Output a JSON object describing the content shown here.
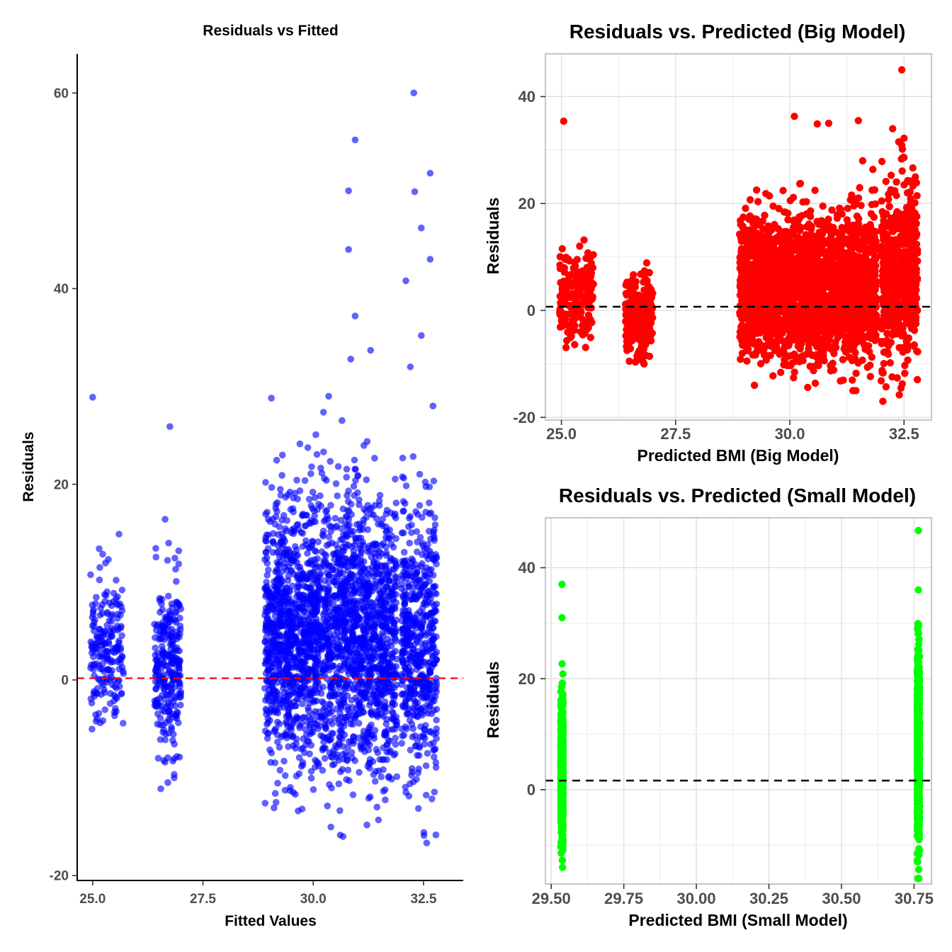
{
  "colors": {
    "left_points": "#0000FF",
    "big_points": "#FF0000",
    "small_points": "#00FF00",
    "left_zero_line": "#FF0000",
    "right_zero_line": "#000000",
    "grid": "#DEDEDE"
  },
  "chart_data": [
    {
      "id": "left",
      "type": "scatter",
      "title": "Residuals vs Fitted",
      "xlabel": "Fitted Values",
      "ylabel": "Residuals",
      "xlim": [
        24.65,
        33.4
      ],
      "ylim": [
        -20.5,
        64
      ],
      "xticks": [
        25.0,
        27.5,
        30.0,
        32.5
      ],
      "xtick_labels": [
        "25.0",
        "27.5",
        "30.0",
        "32.5"
      ],
      "yticks": [
        -20,
        0,
        20,
        40,
        60
      ],
      "ytick_labels": [
        "-20",
        "0",
        "20",
        "40",
        "60"
      ],
      "grid": false,
      "reference_line": {
        "y": 0,
        "style": "dashed"
      },
      "clusters": [
        {
          "x": [
            24.95,
            25.7
          ],
          "y_min": -8,
          "y_max": 18,
          "n": 200
        },
        {
          "x": [
            26.4,
            27.0
          ],
          "y_min": -12,
          "y_max": 18,
          "n": 280
        },
        {
          "x": [
            28.9,
            30.0
          ],
          "y_min": -15,
          "y_max": 28,
          "n": 900
        },
        {
          "x": [
            30.0,
            31.9
          ],
          "y_min": -16,
          "y_max": 29,
          "n": 1500
        },
        {
          "x": [
            32.0,
            32.8
          ],
          "y_min": -17,
          "y_max": 28,
          "n": 550
        }
      ],
      "outliers": [
        [
          25.0,
          28.9
        ],
        [
          26.75,
          25.9
        ],
        [
          30.8,
          50.0
        ],
        [
          30.95,
          55.2
        ],
        [
          30.8,
          44.0
        ],
        [
          30.95,
          37.2
        ],
        [
          31.3,
          33.7
        ],
        [
          30.85,
          32.8
        ],
        [
          32.28,
          60.0
        ],
        [
          32.3,
          49.9
        ],
        [
          32.65,
          51.8
        ],
        [
          32.45,
          46.2
        ],
        [
          32.65,
          43.0
        ],
        [
          32.1,
          40.8
        ],
        [
          32.45,
          35.2
        ],
        [
          32.2,
          32.0
        ],
        [
          29.05,
          28.8
        ]
      ]
    },
    {
      "id": "big",
      "type": "scatter",
      "title": "Residuals vs. Predicted (Big Model)",
      "xlabel": "Predicted BMI (Big Model)",
      "ylabel": "Residuals",
      "xlim": [
        24.65,
        33.1
      ],
      "ylim": [
        -20.5,
        48
      ],
      "xticks": [
        25.0,
        27.5,
        30.0,
        32.5
      ],
      "xtick_labels": [
        "25.0",
        "27.5",
        "30.0",
        "32.5"
      ],
      "yticks": [
        -20,
        0,
        20,
        40
      ],
      "ytick_labels": [
        "-20",
        "0",
        "20",
        "40"
      ],
      "grid": true,
      "reference_line": {
        "y": 0,
        "style": "dashed"
      },
      "clusters": [
        {
          "x": [
            24.95,
            25.7
          ],
          "y_min": -9,
          "y_max": 18,
          "n": 200
        },
        {
          "x": [
            26.4,
            27.0
          ],
          "y_min": -10,
          "y_max": 12,
          "n": 280
        },
        {
          "x": [
            28.9,
            30.0
          ],
          "y_min": -14,
          "y_max": 27,
          "n": 900
        },
        {
          "x": [
            30.0,
            31.9
          ],
          "y_min": -15,
          "y_max": 28,
          "n": 1500
        },
        {
          "x": [
            32.0,
            32.8
          ],
          "y_min": -17,
          "y_max": 34,
          "n": 550
        }
      ],
      "outliers": [
        [
          25.05,
          35.4
        ],
        [
          30.1,
          36.3
        ],
        [
          30.6,
          34.9
        ],
        [
          30.85,
          35.0
        ],
        [
          31.5,
          35.5
        ],
        [
          32.45,
          45.0
        ],
        [
          32.25,
          34.0
        ],
        [
          32.5,
          32.2
        ],
        [
          32.45,
          30.9
        ],
        [
          32.5,
          28.6
        ]
      ]
    },
    {
      "id": "small",
      "type": "scatter",
      "title": "Residuals vs. Predicted (Small Model)",
      "xlabel": "Predicted BMI (Small Model)",
      "ylabel": "Residuals",
      "xlim": [
        29.48,
        30.81
      ],
      "ylim": [
        -17,
        49
      ],
      "xticks": [
        29.5,
        29.75,
        30.0,
        30.25,
        30.5,
        30.75
      ],
      "xtick_labels": [
        "29.50",
        "29.75",
        "30.00",
        "30.25",
        "30.50",
        "30.75"
      ],
      "yticks": [
        0,
        20,
        40
      ],
      "ytick_labels": [
        "0",
        "20",
        "40"
      ],
      "grid": true,
      "reference_line": {
        "y": 0,
        "style": "dashed"
      },
      "clusters": [
        {
          "x": [
            29.537,
            29.537
          ],
          "y_min": -14,
          "y_max": 26,
          "n": 700
        },
        {
          "x": [
            30.765,
            30.765
          ],
          "y_min": -16,
          "y_max": 35,
          "n": 700
        }
      ],
      "outliers": [
        [
          29.537,
          37.0
        ],
        [
          29.537,
          31.0
        ],
        [
          30.765,
          46.7
        ],
        [
          30.765,
          36.0
        ]
      ]
    }
  ]
}
